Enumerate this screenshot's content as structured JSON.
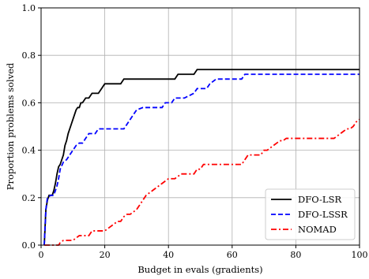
{
  "chart_data": {
    "type": "line",
    "title": "",
    "xlabel": "Budget in evals (gradients)",
    "ylabel": "Proportion problems solved",
    "xlim": [
      0,
      100
    ],
    "ylim": [
      0,
      1
    ],
    "xticks": [
      0,
      20,
      40,
      60,
      80,
      100
    ],
    "yticks": [
      0.0,
      0.2,
      0.4,
      0.6,
      0.8,
      1.0
    ],
    "xtick_labels": [
      "0",
      "20",
      "40",
      "60",
      "80",
      "100"
    ],
    "ytick_labels": [
      "0.0",
      "0.2",
      "0.4",
      "0.6",
      "0.8",
      "1.0"
    ],
    "grid": true,
    "legend_position": "bottom-right",
    "series": [
      {
        "name": "DFO-LSR",
        "color": "#000000",
        "dash": "solid",
        "x": [
          1,
          1.5,
          2,
          2.5,
          3,
          3.5,
          4,
          4.5,
          5,
          5.5,
          6,
          6.5,
          7,
          7.5,
          8,
          8.5,
          9,
          9.5,
          10,
          10.5,
          11,
          11.5,
          12,
          12.5,
          13,
          14,
          14.5,
          15,
          16,
          17,
          18,
          19,
          20,
          25,
          26,
          42,
          43,
          48,
          49,
          100
        ],
        "y": [
          0,
          0.15,
          0.19,
          0.21,
          0.21,
          0.21,
          0.23,
          0.26,
          0.3,
          0.33,
          0.34,
          0.36,
          0.38,
          0.42,
          0.44,
          0.47,
          0.49,
          0.51,
          0.53,
          0.55,
          0.57,
          0.58,
          0.58,
          0.6,
          0.6,
          0.62,
          0.62,
          0.62,
          0.64,
          0.64,
          0.64,
          0.66,
          0.68,
          0.68,
          0.7,
          0.7,
          0.72,
          0.72,
          0.74,
          0.74
        ]
      },
      {
        "name": "DFO-LSSR",
        "color": "#0000ff",
        "dash": "dashed",
        "x": [
          1,
          1.5,
          2,
          3,
          4,
          4.5,
          5,
          5.5,
          6,
          7,
          8,
          9,
          10,
          11,
          12,
          13,
          14,
          15,
          16,
          17,
          18,
          19,
          26,
          27,
          28,
          29,
          30,
          32,
          38,
          39,
          40,
          41,
          42,
          44,
          45,
          48,
          49,
          52,
          53,
          55,
          63,
          64,
          100
        ],
        "y": [
          0,
          0.15,
          0.2,
          0.21,
          0.21,
          0.23,
          0.25,
          0.28,
          0.32,
          0.35,
          0.36,
          0.38,
          0.4,
          0.42,
          0.43,
          0.43,
          0.45,
          0.47,
          0.47,
          0.47,
          0.49,
          0.49,
          0.49,
          0.51,
          0.53,
          0.55,
          0.57,
          0.58,
          0.58,
          0.6,
          0.6,
          0.6,
          0.62,
          0.62,
          0.62,
          0.64,
          0.66,
          0.66,
          0.68,
          0.7,
          0.7,
          0.72,
          0.72
        ]
      },
      {
        "name": "NOMAD",
        "color": "#ff0000",
        "dash": "dashdot",
        "x": [
          1,
          5.5,
          6,
          7,
          8,
          9,
          10,
          11,
          12,
          15,
          16,
          19,
          20,
          21,
          22,
          23,
          24,
          25,
          26,
          27,
          28,
          29,
          30,
          31,
          32,
          33,
          34,
          35,
          36,
          37,
          38,
          39,
          40,
          41,
          42,
          43,
          44,
          45,
          46,
          47,
          48,
          49,
          50,
          51,
          52,
          53,
          54,
          55,
          56,
          57,
          58,
          59,
          60,
          61,
          62,
          63,
          64,
          65,
          66,
          67,
          68,
          69,
          70,
          71,
          72,
          73,
          74,
          75,
          76,
          77,
          78,
          79,
          80,
          81,
          82,
          83,
          84,
          85,
          86,
          87,
          88,
          89,
          90,
          91,
          92,
          93,
          94,
          95,
          96,
          97,
          98,
          99,
          100
        ],
        "y": [
          0,
          0,
          0.01,
          0.02,
          0.02,
          0.02,
          0.02,
          0.03,
          0.04,
          0.04,
          0.06,
          0.06,
          0.06,
          0.07,
          0.08,
          0.09,
          0.1,
          0.1,
          0.12,
          0.13,
          0.13,
          0.14,
          0.15,
          0.17,
          0.19,
          0.21,
          0.22,
          0.23,
          0.24,
          0.25,
          0.26,
          0.27,
          0.28,
          0.28,
          0.28,
          0.29,
          0.3,
          0.3,
          0.3,
          0.3,
          0.3,
          0.32,
          0.32,
          0.34,
          0.34,
          0.34,
          0.34,
          0.34,
          0.34,
          0.34,
          0.34,
          0.34,
          0.34,
          0.34,
          0.34,
          0.34,
          0.36,
          0.38,
          0.38,
          0.38,
          0.38,
          0.38,
          0.4,
          0.4,
          0.41,
          0.42,
          0.43,
          0.44,
          0.44,
          0.45,
          0.45,
          0.45,
          0.45,
          0.45,
          0.45,
          0.45,
          0.45,
          0.45,
          0.45,
          0.45,
          0.45,
          0.45,
          0.45,
          0.45,
          0.45,
          0.46,
          0.47,
          0.48,
          0.49,
          0.49,
          0.5,
          0.52,
          0.53
        ]
      }
    ]
  }
}
